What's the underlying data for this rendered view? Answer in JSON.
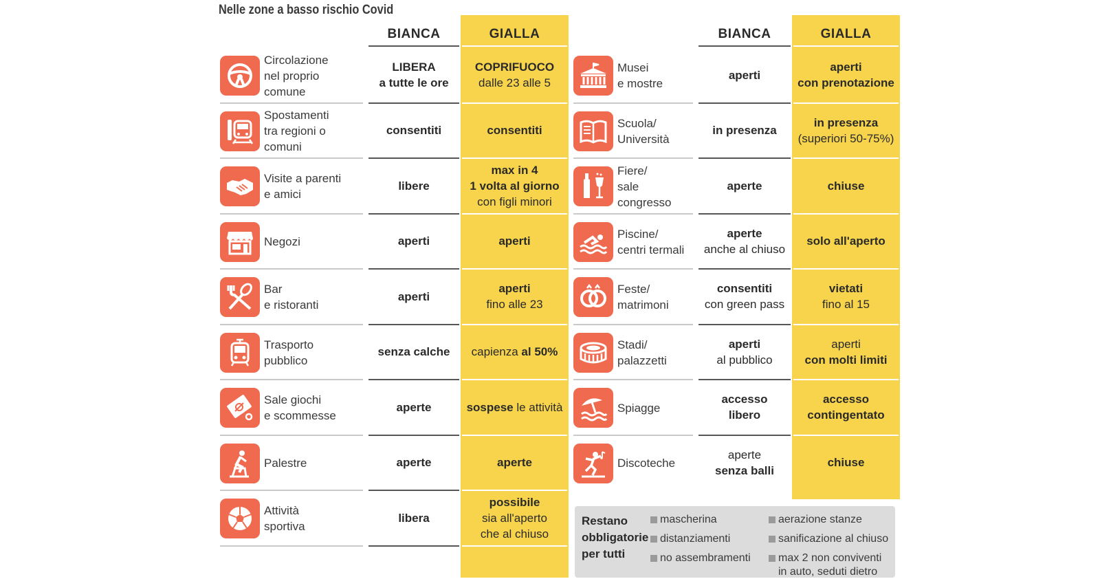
{
  "title": "Nelle zone a basso rischio Covid",
  "headers": {
    "bianca": "BIANCA",
    "gialla": "GIALLA"
  },
  "colors": {
    "accent_icon": "#ef6a4f",
    "yellow": "#f7d44c",
    "box": "#dcdcdc"
  },
  "left_rows": [
    {
      "icon": "steering-wheel-icon",
      "label": "Circolazione\nnel proprio comune",
      "bianca": [
        {
          "t": "LIBERA",
          "b": true
        },
        {
          "t": "a tutte le ore",
          "b": true
        }
      ],
      "gialla": [
        {
          "t": "COPRIFUOCO",
          "b": true
        },
        {
          "t": "dalle 23 alle 5",
          "b": false
        }
      ]
    },
    {
      "icon": "train-icon",
      "label": "Spostamenti\ntra regioni o comuni",
      "bianca": [
        {
          "t": "consentiti",
          "b": true
        }
      ],
      "gialla": [
        {
          "t": "consentiti",
          "b": true
        }
      ]
    },
    {
      "icon": "handshake-icon",
      "label": "Visite a parenti\ne amici",
      "bianca": [
        {
          "t": "libere",
          "b": true
        }
      ],
      "gialla": [
        {
          "t": "max in 4",
          "b": true
        },
        {
          "t": "1 volta al giorno",
          "b": true
        },
        {
          "t": "con figli minori",
          "b": false
        }
      ]
    },
    {
      "icon": "shop-icon",
      "label": "Negozi",
      "bianca": [
        {
          "t": "aperti",
          "b": true
        }
      ],
      "gialla": [
        {
          "t": "aperti",
          "b": true
        }
      ]
    },
    {
      "icon": "cutlery-icon",
      "label": "Bar\ne ristoranti",
      "bianca": [
        {
          "t": "aperti",
          "b": true
        }
      ],
      "gialla": [
        {
          "t": "aperti",
          "b": true
        },
        {
          "t": "fino alle 23",
          "b": false
        }
      ]
    },
    {
      "icon": "tram-icon",
      "label": "Trasporto\npubblico",
      "bianca": [
        {
          "t": "senza calche",
          "b": true
        }
      ],
      "gialla_parts": [
        {
          "t": "capienza ",
          "b": false
        },
        {
          "t": "al 50%",
          "b": true
        }
      ]
    },
    {
      "icon": "betting-slip-icon",
      "label": "Sale giochi\ne scommesse",
      "bianca": [
        {
          "t": "aperte",
          "b": true
        }
      ],
      "gialla_parts": [
        {
          "t": "sospese ",
          "b": true
        },
        {
          "t": "le attività",
          "b": false
        }
      ]
    },
    {
      "icon": "exercise-bike-icon",
      "label": "Palestre",
      "bianca": [
        {
          "t": "aperte",
          "b": true
        }
      ],
      "gialla": [
        {
          "t": "aperte",
          "b": true
        }
      ]
    },
    {
      "icon": "soccer-ball-icon",
      "label": "Attività\nsportiva",
      "bianca": [
        {
          "t": "libera",
          "b": true
        }
      ],
      "gialla": [
        {
          "t": "possibile",
          "b": true
        },
        {
          "t": "sia all'aperto",
          "b": false
        },
        {
          "t": "che al chiuso",
          "b": false
        }
      ]
    }
  ],
  "right_rows": [
    {
      "icon": "museum-icon",
      "label": "Musei\ne mostre",
      "bianca": [
        {
          "t": "aperti",
          "b": true
        }
      ],
      "gialla": [
        {
          "t": "aperti",
          "b": true
        },
        {
          "t": "con prenotazione",
          "b": true
        }
      ]
    },
    {
      "icon": "book-icon",
      "label": "Scuola/\nUniversità",
      "bianca": [
        {
          "t": "in presenza",
          "b": true
        }
      ],
      "gialla": [
        {
          "t": "in presenza",
          "b": true
        },
        {
          "t": "(superiori 50-75%)",
          "b": false
        }
      ]
    },
    {
      "icon": "bottle-glass-icon",
      "label": "Fiere/\nsale congresso",
      "bianca": [
        {
          "t": "aperte",
          "b": true
        }
      ],
      "gialla": [
        {
          "t": "chiuse",
          "b": true
        }
      ]
    },
    {
      "icon": "swimmer-icon",
      "label": "Piscine/\ncentri termali",
      "bianca": [
        {
          "t": "aperte",
          "b": true
        },
        {
          "t": "anche al chiuso",
          "b": false
        }
      ],
      "gialla": [
        {
          "t": "solo all'aperto",
          "b": true
        }
      ]
    },
    {
      "icon": "rings-icon",
      "label": "Feste/\nmatrimoni",
      "bianca": [
        {
          "t": "consentiti",
          "b": true
        },
        {
          "t": "con green pass",
          "b": false
        }
      ],
      "gialla": [
        {
          "t": "vietati",
          "b": true
        },
        {
          "t": "fino al 15",
          "b": false
        }
      ]
    },
    {
      "icon": "stadium-icon",
      "label": "Stadi/\npalazzetti",
      "bianca": [
        {
          "t": "aperti",
          "b": true
        },
        {
          "t": "al pubblico",
          "b": false
        }
      ],
      "gialla": [
        {
          "t": "aperti",
          "b": false
        },
        {
          "t": "con molti limiti",
          "b": true
        }
      ]
    },
    {
      "icon": "umbrella-beach-icon",
      "label": "Spiagge",
      "bianca": [
        {
          "t": "accesso",
          "b": true
        },
        {
          "t": "libero",
          "b": true
        }
      ],
      "gialla": [
        {
          "t": "accesso",
          "b": true
        },
        {
          "t": "contingentato",
          "b": true
        }
      ]
    },
    {
      "icon": "dancer-icon",
      "label": "Discoteche",
      "bianca": [
        {
          "t": "aperte",
          "b": false
        },
        {
          "t": "senza balli",
          "b": true
        }
      ],
      "gialla": [
        {
          "t": "chiuse",
          "b": true
        }
      ]
    }
  ],
  "box": {
    "title": "Restano\nobbligatorie\nper tutti",
    "col1": [
      "mascherina",
      "distanziamenti",
      "no assembramenti"
    ],
    "col2": [
      "aerazione stanze",
      "sanificazione al chiuso",
      "max 2 non conviventi\nin auto, seduti dietro"
    ]
  }
}
